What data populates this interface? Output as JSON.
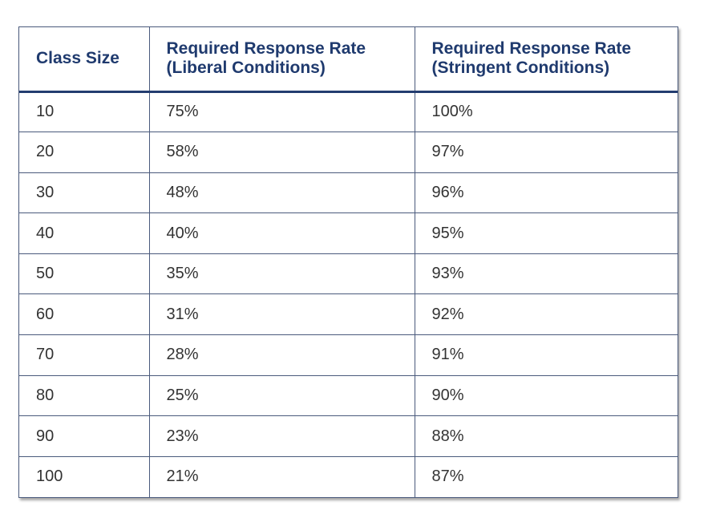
{
  "table": {
    "headers": [
      {
        "line1": "Class Size",
        "line2": ""
      },
      {
        "line1": "Required Response Rate",
        "line2": "(Liberal Conditions)"
      },
      {
        "line1": "Required Response Rate",
        "line2": "(Stringent Conditions)"
      }
    ],
    "rows": [
      [
        "10",
        "75%",
        "100%"
      ],
      [
        "20",
        "58%",
        "97%"
      ],
      [
        "30",
        "48%",
        "96%"
      ],
      [
        "40",
        "40%",
        "95%"
      ],
      [
        "50",
        "35%",
        "93%"
      ],
      [
        "60",
        "31%",
        "92%"
      ],
      [
        "70",
        "28%",
        "91%"
      ],
      [
        "80",
        "25%",
        "90%"
      ],
      [
        "90",
        "23%",
        "88%"
      ],
      [
        "100",
        "21%",
        "87%"
      ]
    ]
  },
  "colors": {
    "header_text": "#1f3a6e",
    "body_text": "#333333",
    "border": "#4a5a7c"
  }
}
